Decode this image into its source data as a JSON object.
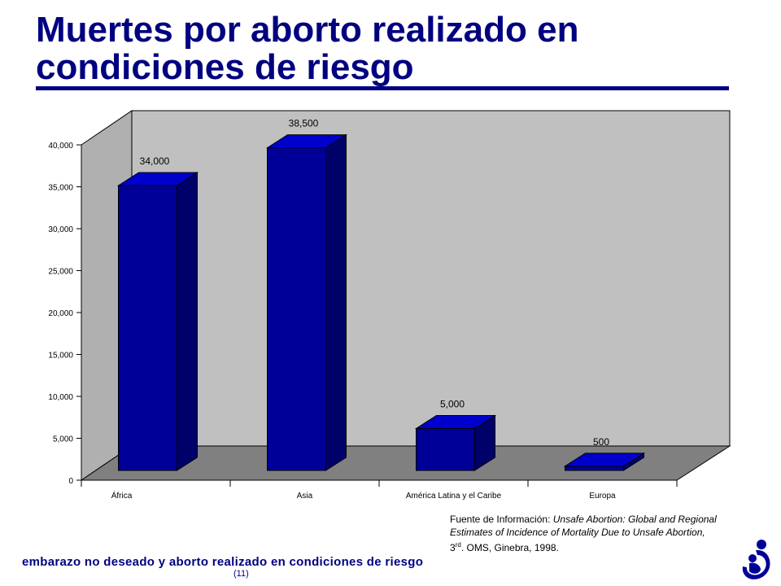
{
  "slide": {
    "title_line1": "Muertes por aborto realizado en",
    "title_line2": "condiciones de riesgo",
    "source_prefix": "Fuente de Información:",
    "source_italic_1": " Unsafe Abortion: Global and Regional",
    "source_italic_2": "Estimates of Incidence of Mortality Due to Unsafe Abortion,",
    "source_edition_num": "3",
    "source_edition_sup": "rd",
    "source_rest": ". OMS, Ginebra, 1998.",
    "footer": "embarazo no deseado y aborto realizado en condiciones de riesgo",
    "page_number": "(11)",
    "title_color": "#000080",
    "logo_icon": "mother-child-logo-icon"
  },
  "chart_data": {
    "type": "bar",
    "style": "3d",
    "title": "",
    "xlabel": "",
    "ylabel": "",
    "categories": [
      "África",
      "Asia",
      "América Latina y el Caribe",
      "Europa"
    ],
    "values": [
      34000,
      38500,
      5000,
      500
    ],
    "value_labels": [
      "34,000",
      "38,500",
      "5,000",
      "500"
    ],
    "ylim": [
      0,
      40000
    ],
    "yticks": [
      0,
      5000,
      10000,
      15000,
      20000,
      25000,
      30000,
      35000,
      40000
    ],
    "ytick_labels": [
      "0",
      "5,000",
      "10,000",
      "15,000",
      "20,000",
      "25,000",
      "30,000",
      "35,000",
      "40,000"
    ],
    "grid": false,
    "legend": "none",
    "colors": {
      "bar_front": "#000099",
      "bar_top": "#0000cc",
      "bar_side": "#00006b",
      "back_wall": "#c0c0c0",
      "left_wall": "#b0b0b0",
      "floor": "#808080"
    }
  }
}
